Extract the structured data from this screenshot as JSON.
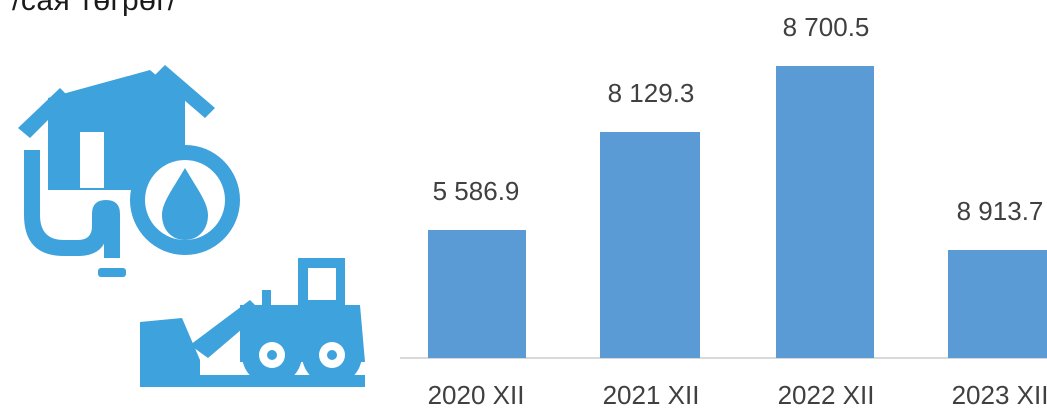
{
  "header": {
    "title": "/сая төгрөг/"
  },
  "illustration": {
    "water_icon": "water-utility-icon",
    "tractor_icon": "tractor-icon",
    "color": "#3ea2dd"
  },
  "chart_data": {
    "type": "bar",
    "categories": [
      "2020 XII",
      "2021 XII",
      "2022 XII",
      "2023 XII"
    ],
    "values": [
      5586.9,
      8129.3,
      8700.5,
      8913.7
    ],
    "value_labels": [
      "5 586.9",
      "8 129.3",
      "8 700.5",
      "8 913.7"
    ],
    "title": "",
    "xlabel": "",
    "ylabel": "",
    "grid": false,
    "legend": "none",
    "bar_color": "#5b9bd5",
    "axis_color": "#d9d9d9",
    "label_color": "#404040"
  }
}
